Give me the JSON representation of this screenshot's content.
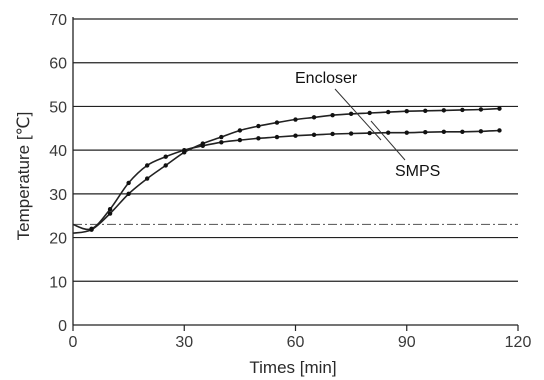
{
  "chart_data": {
    "type": "line",
    "xlabel": "Times [min]",
    "ylabel": "Temperature [℃]",
    "xlim": [
      0,
      120
    ],
    "ylim": [
      0,
      70
    ],
    "xticks": [
      0,
      30,
      60,
      90,
      120
    ],
    "yticks": [
      0,
      10,
      20,
      30,
      40,
      50,
      60,
      70
    ],
    "grid": "horizontal",
    "reference_line": {
      "y": 23,
      "style": "dash-dot"
    },
    "annotations": [
      {
        "text": "Encloser",
        "series": "Encloser"
      },
      {
        "text": "SMPS",
        "series": "SMPS"
      }
    ],
    "series": [
      {
        "name": "Encloser",
        "x": [
          0,
          5,
          10,
          15,
          20,
          25,
          30,
          35,
          40,
          45,
          50,
          55,
          60,
          65,
          70,
          75,
          80,
          85,
          90,
          95,
          100,
          105,
          110,
          115
        ],
        "y": [
          21,
          21.8,
          25.5,
          30,
          33.5,
          36.5,
          39.5,
          41.5,
          43,
          44.5,
          45.5,
          46.3,
          47,
          47.5,
          48,
          48.3,
          48.5,
          48.7,
          48.9,
          49,
          49.1,
          49.2,
          49.3,
          49.5
        ]
      },
      {
        "name": "SMPS",
        "x": [
          0,
          5,
          10,
          15,
          20,
          25,
          30,
          35,
          40,
          45,
          50,
          55,
          60,
          65,
          70,
          75,
          80,
          85,
          90,
          95,
          100,
          105,
          110,
          115
        ],
        "y": [
          23,
          22,
          26.5,
          32.5,
          36.5,
          38.5,
          40,
          41,
          41.8,
          42.3,
          42.7,
          43,
          43.3,
          43.5,
          43.7,
          43.8,
          43.9,
          44,
          44,
          44.1,
          44.2,
          44.2,
          44.3,
          44.5
        ]
      }
    ]
  }
}
